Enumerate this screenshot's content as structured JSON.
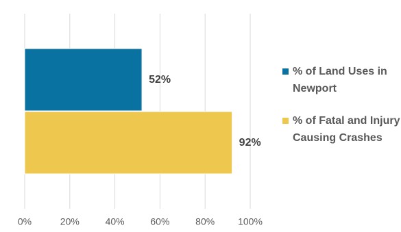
{
  "chart_data": {
    "type": "barh",
    "categories": [
      null
    ],
    "series": [
      {
        "name": "% of Land Uses in Newport",
        "color": "#0a72a0",
        "values": [
          52
        ],
        "value_labels": [
          "52%"
        ]
      },
      {
        "name": "% of Fatal and Injury Causing Crashes",
        "color": "#edc74e",
        "values": [
          92
        ],
        "value_labels": [
          "92%"
        ]
      }
    ],
    "xlim": [
      0,
      100
    ],
    "xticks": [
      {
        "value": 0,
        "label": "0%"
      },
      {
        "value": 20,
        "label": "20%"
      },
      {
        "value": 40,
        "label": "40%"
      },
      {
        "value": 60,
        "label": "60%"
      },
      {
        "value": 80,
        "label": "80%"
      },
      {
        "value": 100,
        "label": "100%"
      }
    ],
    "grid": true,
    "legend": "right"
  }
}
